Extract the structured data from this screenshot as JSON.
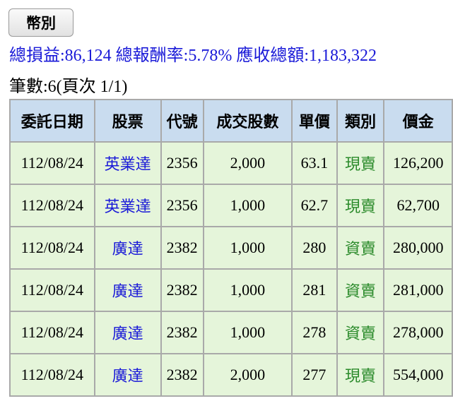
{
  "header": {
    "button": "幣別",
    "summary": [
      "總損益:86,124",
      "總報酬率:5.78%",
      "應收總額:1,183,322"
    ],
    "count": "筆數:6(頁次 1/1)"
  },
  "table": {
    "columns": [
      "委託日期",
      "股票",
      "代號",
      "成交股數",
      "單價",
      "類別",
      "價金"
    ],
    "rows": [
      [
        "112/08/24",
        "英業達",
        "2356",
        "2,000",
        "63.1",
        "現賣",
        "126,200"
      ],
      [
        "112/08/24",
        "英業達",
        "2356",
        "1,000",
        "62.7",
        "現賣",
        "62,700"
      ],
      [
        "112/08/24",
        "廣達",
        "2382",
        "1,000",
        "280",
        "資賣",
        "280,000"
      ],
      [
        "112/08/24",
        "廣達",
        "2382",
        "1,000",
        "281",
        "資賣",
        "281,000"
      ],
      [
        "112/08/24",
        "廣達",
        "2382",
        "1,000",
        "278",
        "資賣",
        "278,000"
      ],
      [
        "112/08/24",
        "廣達",
        "2382",
        "2,000",
        "277",
        "現賣",
        "554,000"
      ]
    ]
  }
}
